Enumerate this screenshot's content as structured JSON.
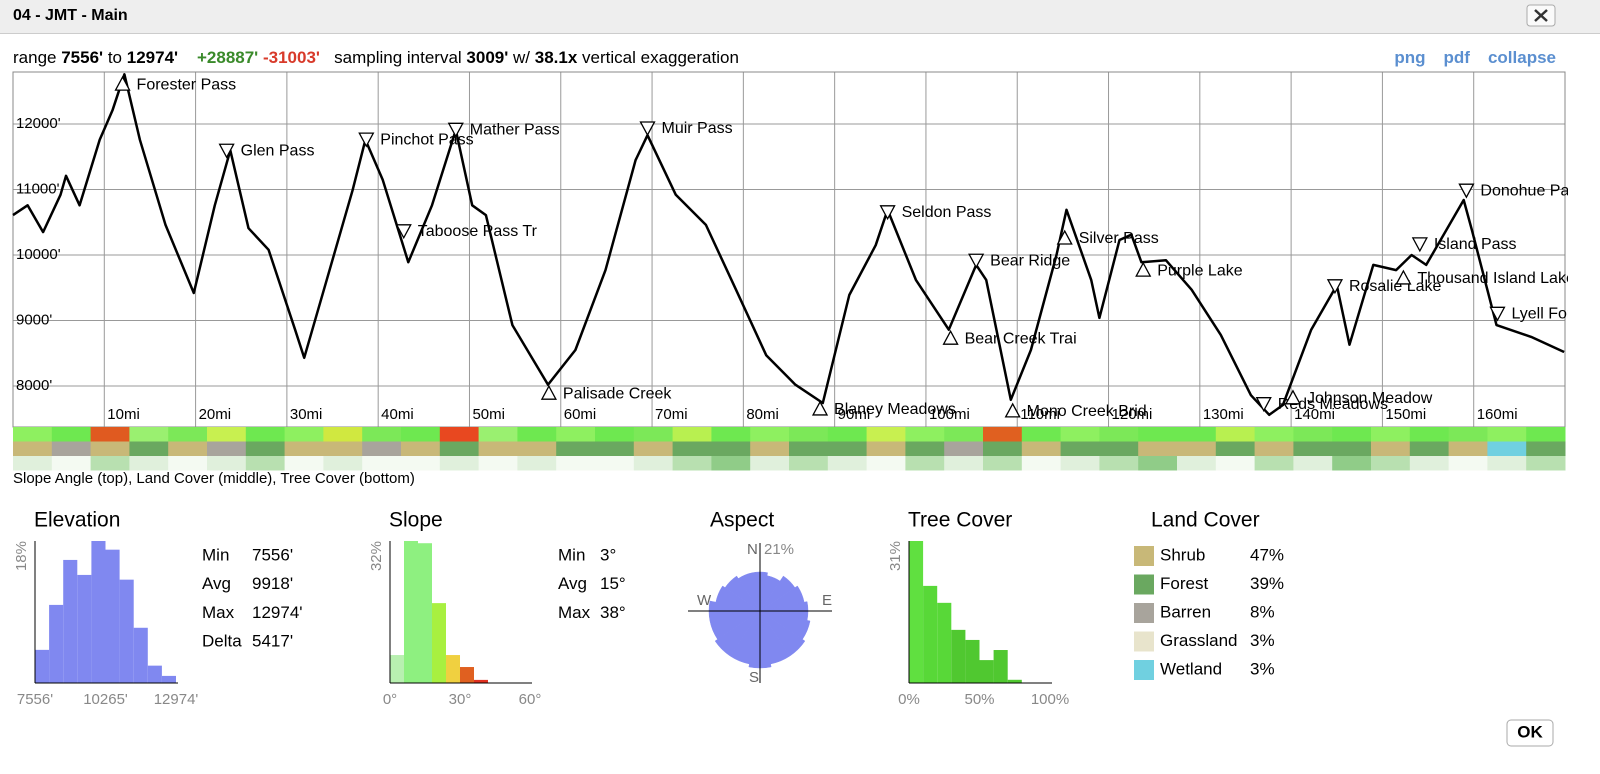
{
  "window": {
    "title": "04 - JMT - Main",
    "ok": "OK"
  },
  "header": {
    "range": "range",
    "min": "7556'",
    "to": "to",
    "max": "12974'",
    "gain": "+28887'",
    "loss": "-31003'",
    "interval_label": "sampling interval",
    "interval": "3009'",
    "w": "w/",
    "exaggeration": "38.1x",
    "exaggeration_label": "vertical exaggeration",
    "links": [
      "png",
      "pdf",
      "collapse"
    ]
  },
  "profile": {
    "type": "line",
    "color": "#000000",
    "x": [
      0,
      1.6,
      3.3,
      5.2,
      5.8,
      7.3,
      9.5,
      10.9,
      12.2,
      13.9,
      16.7,
      19.8,
      22.1,
      23.8,
      25.8,
      28.0,
      30.9,
      31.9,
      34.2,
      37.2,
      38.6,
      40.5,
      43.3,
      45.9,
      48.5,
      50.3,
      51.8,
      54.7,
      58.6,
      61.6,
      64.9,
      68.2,
      69.5,
      72.6,
      75.9,
      79.2,
      82.5,
      85.7,
      88.7,
      91.6,
      94.5,
      95.8,
      98.9,
      102.5,
      105.5,
      106.6,
      109.3,
      111.5,
      114.3,
      115.4,
      118.1,
      119.0,
      121.2,
      122.5,
      123.6,
      126.3,
      129.1,
      132.3,
      135.6,
      137.6,
      139.1,
      142.2,
      145.0,
      146.4,
      149.0,
      151.5,
      153.2,
      154.8,
      158.9,
      159.8,
      162.5,
      166.3,
      169.9
    ],
    "values": [
      10610,
      10760,
      10350,
      10920,
      11210,
      10760,
      11760,
      12210,
      12760,
      11760,
      10460,
      9420,
      10760,
      11600,
      10410,
      10080,
      8860,
      8430,
      9540,
      10990,
      11760,
      11150,
      9890,
      10760,
      11910,
      10760,
      10610,
      8930,
      8020,
      8550,
      9770,
      11450,
      11830,
      10920,
      10460,
      9470,
      8470,
      8020,
      7740,
      9390,
      10150,
      10690,
      9620,
      8860,
      9850,
      9620,
      7790,
      8550,
      10000,
      10690,
      9620,
      9040,
      10230,
      10310,
      9890,
      9920,
      9470,
      8780,
      7860,
      7560,
      7710,
      8860,
      9540,
      8630,
      9850,
      9770,
      10000,
      9850,
      10840,
      10380,
      8930,
      8750,
      8520
    ],
    "xlim": [
      0,
      170
    ],
    "ylim": [
      7374,
      12795
    ],
    "xticks": [
      {
        "value": 10,
        "label": "10mi"
      },
      {
        "value": 20,
        "label": "20mi"
      },
      {
        "value": 30,
        "label": "30mi"
      },
      {
        "value": 40,
        "label": "40mi"
      },
      {
        "value": 50,
        "label": "50mi"
      },
      {
        "value": 60,
        "label": "60mi"
      },
      {
        "value": 70,
        "label": "70mi"
      },
      {
        "value": 80,
        "label": "80mi"
      },
      {
        "value": 90,
        "label": "90mi"
      },
      {
        "value": 100,
        "label": "100mi"
      },
      {
        "value": 110,
        "label": "110mi"
      },
      {
        "value": 120,
        "label": "120mi"
      },
      {
        "value": 130,
        "label": "130mi"
      },
      {
        "value": 140,
        "label": "140mi"
      },
      {
        "value": 150,
        "label": "150mi"
      },
      {
        "value": 160,
        "label": "160mi"
      }
    ],
    "yticks": [
      {
        "value": 8000,
        "label": "8000'"
      },
      {
        "value": 9000,
        "label": "9000'"
      },
      {
        "value": 10000,
        "label": "10000'"
      },
      {
        "value": 11000,
        "label": "11000'"
      },
      {
        "value": 12000,
        "label": "12000'"
      }
    ],
    "grid": true,
    "waypoints": [
      {
        "name": "Forester Pass",
        "mile": 12.0,
        "elevation": 12610,
        "marker": "up"
      },
      {
        "name": "Glen Pass",
        "mile": 23.4,
        "elevation": 11600,
        "marker": "down"
      },
      {
        "name": "Pinchot Pass",
        "mile": 38.7,
        "elevation": 11770,
        "marker": "down"
      },
      {
        "name": "Taboose Pass Tr",
        "mile": 42.8,
        "elevation": 10370,
        "marker": "down"
      },
      {
        "name": "Mather Pass",
        "mile": 48.5,
        "elevation": 11920,
        "marker": "down"
      },
      {
        "name": "Palisade Creek",
        "mile": 58.7,
        "elevation": 7890,
        "marker": "up"
      },
      {
        "name": "Muir Pass",
        "mile": 69.5,
        "elevation": 11940,
        "marker": "down"
      },
      {
        "name": "Blaney Meadows",
        "mile": 88.4,
        "elevation": 7650,
        "marker": "up"
      },
      {
        "name": "Seldon Pass",
        "mile": 95.8,
        "elevation": 10660,
        "marker": "down"
      },
      {
        "name": "Bear Creek Trai",
        "mile": 102.7,
        "elevation": 8730,
        "marker": "up"
      },
      {
        "name": "Bear Ridge",
        "mile": 105.5,
        "elevation": 9920,
        "marker": "down"
      },
      {
        "name": "Mono Creek Brid",
        "mile": 109.5,
        "elevation": 7620,
        "marker": "up"
      },
      {
        "name": "Silver Pass",
        "mile": 115.2,
        "elevation": 10260,
        "marker": "up"
      },
      {
        "name": "Purple Lake",
        "mile": 123.8,
        "elevation": 9770,
        "marker": "up"
      },
      {
        "name": "Reds Meadows",
        "mile": 137.0,
        "elevation": 7730,
        "marker": "down"
      },
      {
        "name": "Johnson Meadow",
        "mile": 140.2,
        "elevation": 7820,
        "marker": "up"
      },
      {
        "name": "Rosalie Lake",
        "mile": 144.8,
        "elevation": 9530,
        "marker": "down"
      },
      {
        "name": "Thousand Island Lake",
        "mile": 152.3,
        "elevation": 9650,
        "marker": "up"
      },
      {
        "name": "Island Pass",
        "mile": 154.1,
        "elevation": 10170,
        "marker": "down"
      },
      {
        "name": "Donohue Pass",
        "mile": 159.2,
        "elevation": 10990,
        "marker": "down"
      },
      {
        "name": "Lyell Fork",
        "mile": 162.6,
        "elevation": 9110,
        "marker": "down"
      }
    ]
  },
  "strips": {
    "caption": "Slope Angle (top), Land Cover (middle), Tree Cover (bottom)",
    "slope": [
      "#8ef060",
      "#6ee850",
      "#e05a20",
      "#9af070",
      "#7ce858",
      "#c8f050",
      "#6ee850",
      "#8ef060",
      "#d0e840",
      "#7ce858",
      "#6ee850",
      "#e84820",
      "#9af070",
      "#6ee850",
      "#8ef060",
      "#6ee850",
      "#7ce858",
      "#b8f050",
      "#6ee850",
      "#8ef060",
      "#7ce858",
      "#6ee850",
      "#c8f050",
      "#8ef060",
      "#7ce858",
      "#e06020",
      "#6ee850",
      "#8ef060",
      "#7ce858",
      "#6ee850",
      "#6ee850",
      "#b8f050",
      "#8ef060",
      "#7ce858",
      "#6ee850",
      "#8ef060",
      "#6ee850",
      "#7ce858",
      "#8ef060",
      "#6ee850"
    ],
    "land_cover": [
      "#c8b878",
      "#a8a49c",
      "#c8b878",
      "#6aa860",
      "#c8b878",
      "#a8a49c",
      "#6aa860",
      "#c8b878",
      "#c8b878",
      "#a8a49c",
      "#c8b878",
      "#6aa860",
      "#c8b878",
      "#c8b878",
      "#6aa860",
      "#6aa860",
      "#c8b878",
      "#6aa860",
      "#6aa860",
      "#c8b878",
      "#6aa860",
      "#6aa860",
      "#c8b878",
      "#6aa860",
      "#a8a49c",
      "#6aa860",
      "#c8b878",
      "#6aa860",
      "#6aa860",
      "#c8b878",
      "#c8b878",
      "#6aa860",
      "#c8b878",
      "#6aa860",
      "#6aa860",
      "#c8b878",
      "#6aa860",
      "#c8b878",
      "#70d0e0",
      "#6aa860"
    ],
    "tree_cover": [
      "#e0f0dc",
      "#f4faf2",
      "#b8e0b0",
      "#e0f0dc",
      "#f4faf2",
      "#e0f0dc",
      "#b8e0b0",
      "#f4faf2",
      "#e0f0dc",
      "#f4faf2",
      "#f4faf2",
      "#e0f0dc",
      "#f4faf2",
      "#e0f0dc",
      "#f4faf2",
      "#f4faf2",
      "#e0f0dc",
      "#b8e0b0",
      "#90cc88",
      "#e0f0dc",
      "#b8e0b0",
      "#e0f0dc",
      "#f4faf2",
      "#b8e0b0",
      "#e0f0dc",
      "#b8e0b0",
      "#f4faf2",
      "#e0f0dc",
      "#b8e0b0",
      "#90cc88",
      "#e0f0dc",
      "#f4faf2",
      "#b8e0b0",
      "#e0f0dc",
      "#90cc88",
      "#b8e0b0",
      "#e0f0dc",
      "#f4faf2",
      "#e0f0dc",
      "#b8e0b0"
    ]
  },
  "elevation": {
    "type": "histogram",
    "title": "Elevation",
    "color": "#8088f0",
    "bins": [
      7556,
      8098,
      8640,
      9181,
      9723,
      10265,
      10807,
      11349,
      11890,
      12432,
      12974
    ],
    "values": [
      4.2,
      9.9,
      15.6,
      13.7,
      18,
      16.9,
      13.1,
      7.0,
      2.2,
      0.9
    ],
    "xlim": [
      7556,
      12974
    ],
    "xticks": [
      {
        "value": 7556,
        "label": "7556'"
      },
      {
        "value": 10265,
        "label": "10265'"
      },
      {
        "value": 12974,
        "label": "12974'"
      }
    ],
    "ylim": [
      0,
      18
    ],
    "yticks": [
      {
        "value": 18,
        "label": "18%"
      }
    ],
    "stats": [
      {
        "label": "Min",
        "value": "7556'"
      },
      {
        "label": "Avg",
        "value": "9918'"
      },
      {
        "label": "Max",
        "value": "12974'"
      },
      {
        "label": "Delta",
        "value": "5417'"
      }
    ]
  },
  "slope": {
    "type": "histogram",
    "title": "Slope",
    "colors": [
      "#b8f0b0",
      "#8ef080",
      "#8ef080",
      "#a8f040",
      "#f0d040",
      "#e06020",
      "#e03020"
    ],
    "bins": [
      0,
      6,
      12,
      18,
      24,
      30,
      36,
      42
    ],
    "values": [
      6.3,
      32,
      31.5,
      18,
      6.3,
      3.6,
      0.7
    ],
    "xlim": [
      0,
      60
    ],
    "xticks": [
      {
        "value": 0,
        "label": "0°"
      },
      {
        "value": 30,
        "label": "30°"
      },
      {
        "value": 60,
        "label": "60°"
      }
    ],
    "ylim": [
      0,
      32
    ],
    "yticks": [
      {
        "value": 32,
        "label": "32%"
      }
    ],
    "stats": [
      {
        "label": "Min",
        "value": "3°"
      },
      {
        "label": "Avg",
        "value": "15°"
      },
      {
        "label": "Max",
        "value": "38°"
      }
    ]
  },
  "aspect": {
    "type": "rose",
    "title": "Aspect",
    "color": "#8088f0",
    "values": [
      13,
      12,
      14,
      15,
      16,
      17,
      18,
      18,
      19,
      18,
      18,
      17,
      17,
      15,
      14,
      13
    ],
    "ylim": [
      0,
      21
    ],
    "yticks": [
      {
        "value": 21,
        "label": "21%"
      }
    ],
    "directions": [
      "N",
      "E",
      "S",
      "W"
    ]
  },
  "tree_cover": {
    "type": "histogram",
    "title": "Tree Cover",
    "colors": [
      "#60e040",
      "#58d838",
      "#58d838",
      "#50c830",
      "#50c830",
      "#50c830",
      "#50c830",
      "#50c830"
    ],
    "bins": [
      0,
      10,
      20,
      30,
      40,
      50,
      60,
      70,
      80
    ],
    "values": [
      31,
      21.2,
      17.5,
      11.6,
      9.4,
      5.0,
      7.2,
      0.7
    ],
    "xlim": [
      0,
      100
    ],
    "xticks": [
      {
        "value": 0,
        "label": "0%"
      },
      {
        "value": 50,
        "label": "50%"
      },
      {
        "value": 100,
        "label": "100%"
      }
    ],
    "ylim": [
      0,
      31
    ],
    "yticks": [
      {
        "value": 31,
        "label": "31%"
      }
    ]
  },
  "land_cover": {
    "type": "legend",
    "title": "Land Cover",
    "categories": [
      "Shrub",
      "Forest",
      "Barren",
      "Grassland",
      "Wetland"
    ],
    "colors": [
      "#c8b878",
      "#6aa860",
      "#a8a49c",
      "#e8e4cc",
      "#70d0e0"
    ],
    "values": [
      47,
      39,
      8,
      3,
      3
    ],
    "value_labels": [
      "47%",
      "39%",
      "8%",
      "3%",
      "3%"
    ]
  }
}
